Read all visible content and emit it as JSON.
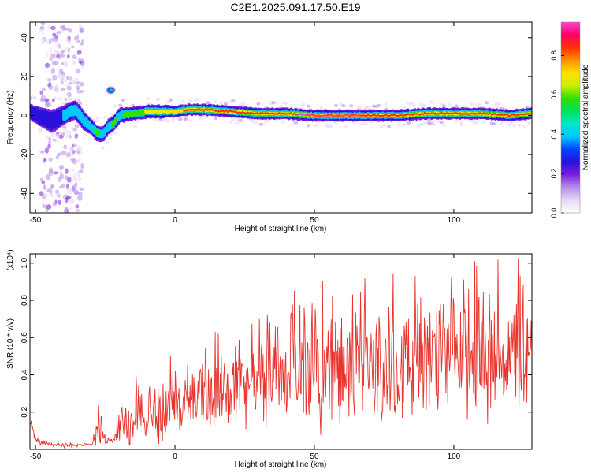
{
  "title": "C2E1.2025.091.17.50.E19",
  "colors": {
    "snr_line": "#e8322c",
    "frame": "#000000",
    "colorscale": [
      "#ffffff",
      "#e6d8f4",
      "#b88de8",
      "#7a1fe0",
      "#2a10d8",
      "#0044ff",
      "#00c8ff",
      "#00e8c8",
      "#00e060",
      "#30e000",
      "#c8f000",
      "#ffe000",
      "#ff9000",
      "#ff3000",
      "#ff0066",
      "#ff44cc"
    ]
  },
  "chart_data": [
    {
      "type": "heatmap",
      "xlabel": "Height of straight line (km)",
      "ylabel": "Frequency (Hz)",
      "xlim": [
        -52,
        128
      ],
      "ylim": [
        -50,
        48
      ],
      "x_ticks": [
        -50,
        0,
        50,
        100
      ],
      "y_ticks": [
        -40,
        -20,
        0,
        20,
        40
      ],
      "colorbar": {
        "label": "Normalized spectral amplitude",
        "range": [
          0.0,
          0.97
        ],
        "ticks": [
          0.0,
          0.2,
          0.4,
          0.6,
          0.8
        ],
        "tick_labels": [
          "0.0",
          "0.2",
          "0.4",
          "0.6",
          "0.8"
        ]
      },
      "ridge": {
        "description_x": [
          -52,
          -48,
          -44,
          -40,
          -36,
          -33,
          -30,
          -28,
          -26,
          -24,
          -22,
          -20,
          -15,
          -10,
          -5,
          0,
          5,
          10,
          20,
          30,
          40,
          50,
          60,
          70,
          80,
          90,
          100,
          110,
          120,
          128
        ],
        "frequency": [
          2,
          -1,
          -3,
          0,
          3,
          -2,
          -6,
          -9,
          -10,
          -6,
          -4,
          0,
          1,
          2,
          2,
          2,
          3,
          3,
          2,
          1,
          1,
          0,
          0,
          0,
          0,
          1,
          1,
          1,
          0,
          1
        ],
        "peak_amplitude": [
          0.3,
          0.4,
          0.35,
          0.4,
          0.45,
          0.4,
          0.5,
          0.55,
          0.5,
          0.5,
          0.55,
          0.5,
          0.6,
          0.7,
          0.75,
          0.8,
          0.85,
          0.9,
          0.92,
          0.9,
          0.92,
          0.95,
          0.95,
          0.92,
          0.92,
          0.9,
          0.9,
          0.9,
          0.85,
          0.85
        ],
        "half_width_hz": [
          4,
          5,
          6,
          5,
          5,
          5,
          4,
          4,
          4,
          4,
          4,
          4,
          3.5,
          3.5,
          3.5,
          3,
          3,
          3,
          3,
          3,
          3,
          3,
          3,
          3,
          3,
          3,
          3,
          3,
          3,
          3
        ]
      },
      "scatter_band": {
        "x_range": [
          -48,
          -33
        ],
        "amplitude": 0.12
      },
      "blob": {
        "x": -23,
        "frequency": 13,
        "amplitude": 0.5
      }
    },
    {
      "type": "line",
      "xlabel": "Height of straight line (km)",
      "ylabel": "SNR (10 * v/v)",
      "exponent_label": "(x10⁴)",
      "xlim": [
        -52,
        128
      ],
      "ylim": [
        0,
        1.05
      ],
      "x_ticks": [
        -50,
        0,
        50,
        100
      ],
      "y_ticks": [
        0.2,
        0.4,
        0.6,
        0.8,
        1.0
      ],
      "y_tick_labels": [
        "0.2",
        "0.4",
        "0.6",
        "0.8",
        "1.0"
      ],
      "series": [
        {
          "x": [
            -52,
            -50,
            -45,
            -40,
            -35,
            -30,
            -27,
            -25,
            -22,
            -20,
            -15,
            -10,
            -5,
            0,
            5,
            10,
            20,
            30,
            40,
            50,
            60,
            70,
            80,
            90,
            100,
            110,
            120,
            128
          ],
          "baseline": [
            0.14,
            0.05,
            0.03,
            0.02,
            0.02,
            0.03,
            0.12,
            0.05,
            0.05,
            0.12,
            0.16,
            0.18,
            0.2,
            0.22,
            0.25,
            0.3,
            0.34,
            0.37,
            0.4,
            0.42,
            0.42,
            0.43,
            0.45,
            0.46,
            0.48,
            0.5,
            0.5,
            0.52
          ],
          "spread": [
            0.03,
            0.02,
            0.01,
            0.01,
            0.01,
            0.01,
            0.1,
            0.02,
            0.02,
            0.1,
            0.14,
            0.16,
            0.18,
            0.18,
            0.18,
            0.2,
            0.2,
            0.22,
            0.25,
            0.3,
            0.3,
            0.3,
            0.3,
            0.3,
            0.3,
            0.32,
            0.32,
            0.32
          ]
        }
      ]
    }
  ]
}
